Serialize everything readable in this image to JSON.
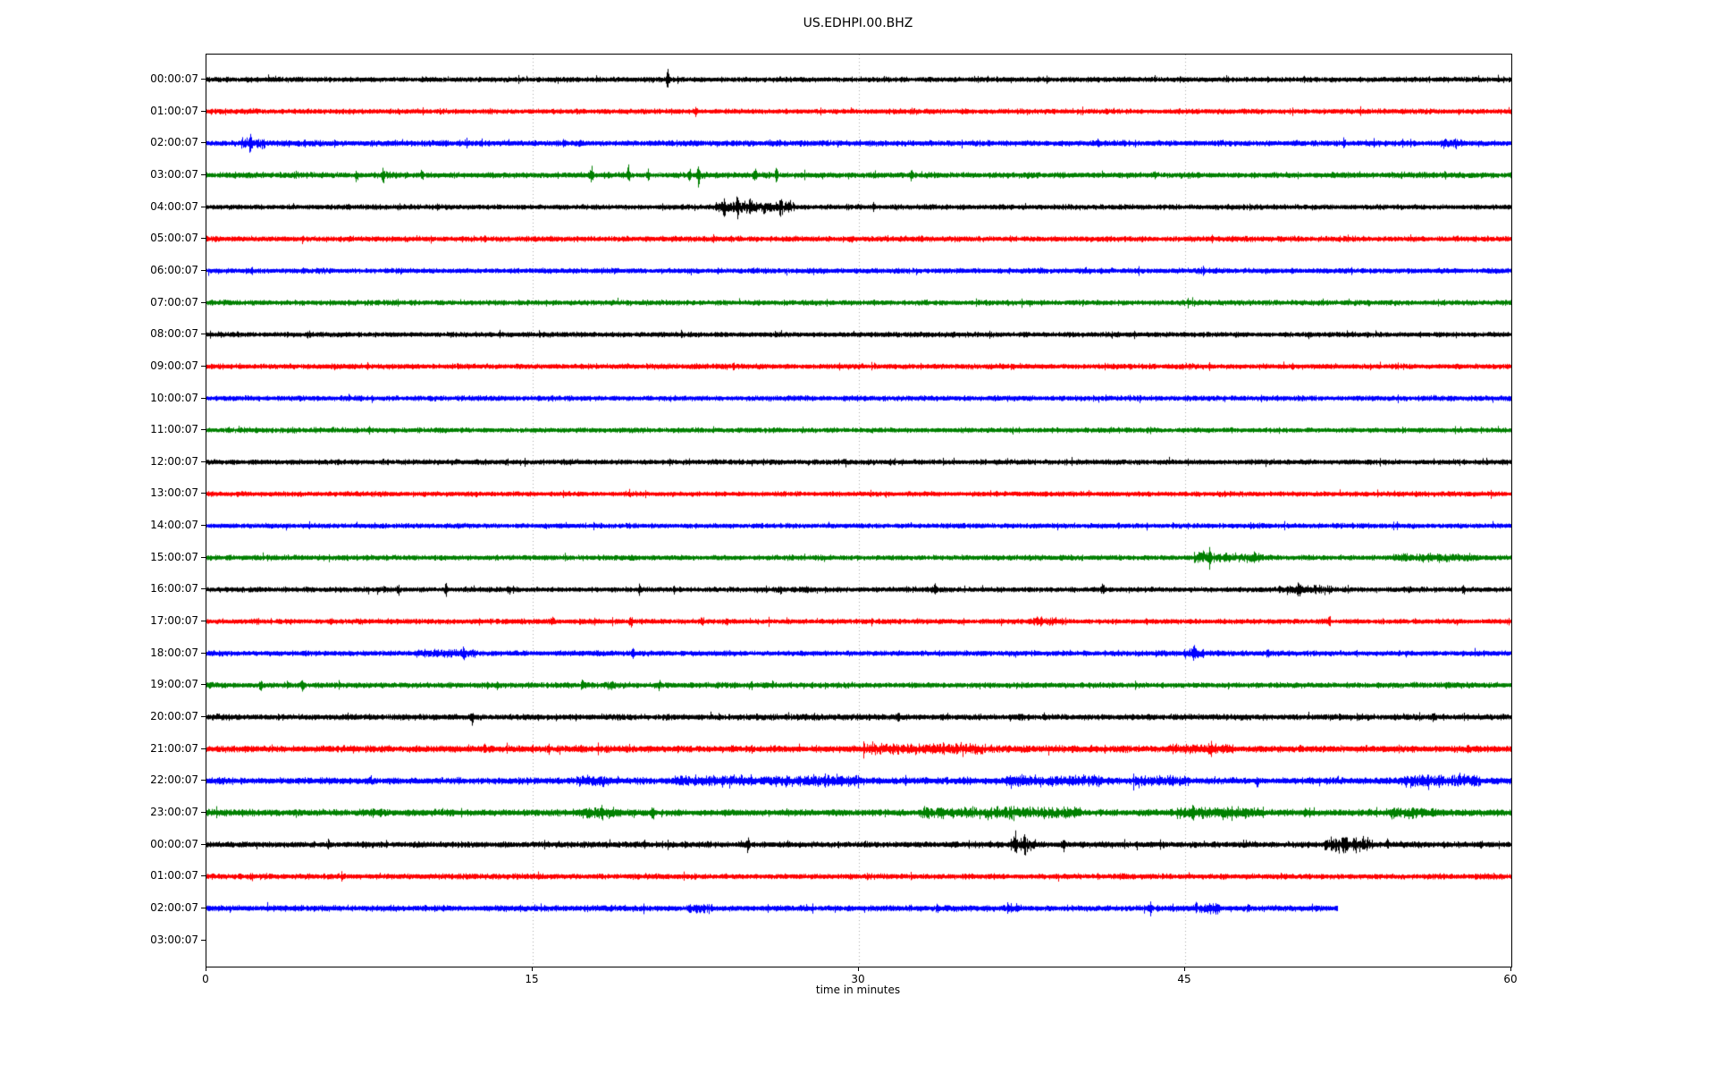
{
  "title": "US.EDHPI.00.BHZ",
  "xlabel": "time in minutes",
  "chart_data": {
    "type": "line",
    "subtype": "helicorder-dayplot",
    "title": "US.EDHPI.00.BHZ",
    "xlabel": "time in minutes",
    "x_range": [
      0,
      60
    ],
    "x_ticks": [
      0,
      15,
      30,
      45,
      60
    ],
    "grid_minutes": [
      15,
      30,
      45
    ],
    "grid_style": "dotted",
    "colors": {
      "black": "#000000",
      "red": "#ff0000",
      "blue": "#0000ff",
      "green": "#008000"
    },
    "rows": [
      {
        "label": "00:00:07",
        "color": "black",
        "base": 3.0,
        "duration": 60,
        "events": [
          {
            "type": "spike",
            "t": 21.2,
            "amp": 16,
            "w": 0.1
          },
          {
            "type": "spike",
            "t": 43.6,
            "amp": 4,
            "w": 0.08
          }
        ]
      },
      {
        "label": "01:00:07",
        "color": "red",
        "base": 3.0,
        "duration": 60,
        "events": [
          {
            "type": "spike",
            "t": 22.5,
            "amp": 5,
            "w": 0.12
          }
        ]
      },
      {
        "label": "02:00:07",
        "color": "blue",
        "base": 3.3,
        "duration": 60,
        "events": [
          {
            "type": "band",
            "t0": 1.6,
            "t1": 2.7,
            "amp": 6
          },
          {
            "type": "spike",
            "t": 2.0,
            "amp": 11,
            "w": 0.1
          },
          {
            "type": "spike",
            "t": 41.0,
            "amp": 4,
            "w": 0.08
          },
          {
            "type": "spike",
            "t": 52.3,
            "amp": 6,
            "w": 0.08
          },
          {
            "type": "band",
            "t0": 56.7,
            "t1": 57.7,
            "amp": 5
          }
        ]
      },
      {
        "label": "03:00:07",
        "color": "green",
        "base": 3.3,
        "duration": 60,
        "events": [
          {
            "type": "spike",
            "t": 6.9,
            "amp": 7,
            "w": 0.1
          },
          {
            "type": "spike",
            "t": 8.1,
            "amp": 13,
            "w": 0.1
          },
          {
            "type": "spike",
            "t": 9.9,
            "amp": 7,
            "w": 0.1
          },
          {
            "type": "spike",
            "t": 17.7,
            "amp": 8,
            "w": 0.12
          },
          {
            "type": "spike",
            "t": 19.4,
            "amp": 10,
            "w": 0.12
          },
          {
            "type": "spike",
            "t": 20.3,
            "amp": 6,
            "w": 0.1
          },
          {
            "type": "spike",
            "t": 22.2,
            "amp": 8,
            "w": 0.1
          },
          {
            "type": "spike",
            "t": 22.6,
            "amp": 12,
            "w": 0.1
          },
          {
            "type": "spike",
            "t": 25.2,
            "amp": 6,
            "w": 0.15
          },
          {
            "type": "spike",
            "t": 26.2,
            "amp": 11,
            "w": 0.1
          },
          {
            "type": "spike",
            "t": 32.4,
            "amp": 8,
            "w": 0.1
          }
        ]
      },
      {
        "label": "04:00:07",
        "color": "black",
        "base": 3.0,
        "duration": 60,
        "events": [
          {
            "type": "band",
            "t0": 23.4,
            "t1": 27.0,
            "amp": 6
          },
          {
            "type": "spike",
            "t": 23.8,
            "amp": 11,
            "w": 0.1
          },
          {
            "type": "spike",
            "t": 24.4,
            "amp": 13,
            "w": 0.1
          },
          {
            "type": "spike",
            "t": 25.0,
            "amp": 11,
            "w": 0.1
          },
          {
            "type": "spike",
            "t": 26.4,
            "amp": 9,
            "w": 0.1
          }
        ]
      },
      {
        "label": "05:00:07",
        "color": "red",
        "base": 3.2,
        "duration": 60,
        "events": [
          {
            "type": "spike",
            "t": 25.3,
            "amp": 3,
            "w": 0.1
          }
        ]
      },
      {
        "label": "06:00:07",
        "color": "blue",
        "base": 3.1,
        "duration": 60,
        "events": []
      },
      {
        "label": "07:00:07",
        "color": "green",
        "base": 3.0,
        "duration": 60,
        "events": []
      },
      {
        "label": "08:00:07",
        "color": "black",
        "base": 3.0,
        "duration": 60,
        "events": []
      },
      {
        "label": "09:00:07",
        "color": "red",
        "base": 3.1,
        "duration": 60,
        "events": []
      },
      {
        "label": "10:00:07",
        "color": "blue",
        "base": 3.0,
        "duration": 60,
        "events": []
      },
      {
        "label": "11:00:07",
        "color": "green",
        "base": 3.0,
        "duration": 60,
        "events": []
      },
      {
        "label": "12:00:07",
        "color": "black",
        "base": 3.0,
        "duration": 60,
        "events": []
      },
      {
        "label": "13:00:07",
        "color": "red",
        "base": 2.9,
        "duration": 60,
        "events": []
      },
      {
        "label": "14:00:07",
        "color": "blue",
        "base": 2.9,
        "duration": 60,
        "events": []
      },
      {
        "label": "15:00:07",
        "color": "green",
        "base": 3.0,
        "duration": 60,
        "events": [
          {
            "type": "band",
            "t0": 45.4,
            "t1": 48.6,
            "amp": 6
          },
          {
            "type": "spike",
            "t": 46.1,
            "amp": 8,
            "w": 0.15
          },
          {
            "type": "band",
            "t0": 54.5,
            "t1": 58.6,
            "amp": 4
          }
        ]
      },
      {
        "label": "16:00:07",
        "color": "black",
        "base": 3.0,
        "duration": 60,
        "events": [
          {
            "type": "spike",
            "t": 8.8,
            "amp": 5,
            "w": 0.1
          },
          {
            "type": "spike",
            "t": 11.0,
            "amp": 8,
            "w": 0.1
          },
          {
            "type": "spike",
            "t": 13.9,
            "amp": 6,
            "w": 0.1
          },
          {
            "type": "spike",
            "t": 19.9,
            "amp": 7,
            "w": 0.1
          },
          {
            "type": "spike",
            "t": 21.5,
            "amp": 5,
            "w": 0.1
          },
          {
            "type": "spike",
            "t": 27.6,
            "amp": 4,
            "w": 0.1
          },
          {
            "type": "spike",
            "t": 33.5,
            "amp": 7,
            "w": 0.1
          },
          {
            "type": "spike",
            "t": 41.2,
            "amp": 6,
            "w": 0.1
          },
          {
            "type": "band",
            "t0": 49.3,
            "t1": 51.7,
            "amp": 4
          },
          {
            "type": "spike",
            "t": 50.2,
            "amp": 8,
            "w": 0.1
          },
          {
            "type": "spike",
            "t": 55.3,
            "amp": 4,
            "w": 0.1
          },
          {
            "type": "spike",
            "t": 57.8,
            "amp": 5,
            "w": 0.1
          }
        ]
      },
      {
        "label": "17:00:07",
        "color": "red",
        "base": 3.0,
        "duration": 60,
        "events": [
          {
            "type": "spike",
            "t": 5.7,
            "amp": 4,
            "w": 0.1
          },
          {
            "type": "spike",
            "t": 15.9,
            "amp": 5,
            "w": 0.1
          },
          {
            "type": "spike",
            "t": 19.5,
            "amp": 6,
            "w": 0.1
          },
          {
            "type": "spike",
            "t": 22.8,
            "amp": 5,
            "w": 0.1
          },
          {
            "type": "spike",
            "t": 23.9,
            "amp": 5,
            "w": 0.1
          },
          {
            "type": "spike",
            "t": 30.6,
            "amp": 4,
            "w": 0.1
          },
          {
            "type": "band",
            "t0": 37.8,
            "t1": 39.6,
            "amp": 4
          },
          {
            "type": "spike",
            "t": 43.2,
            "amp": 4,
            "w": 0.1
          },
          {
            "type": "spike",
            "t": 51.6,
            "amp": 4,
            "w": 0.1
          },
          {
            "type": "spike",
            "t": 55.6,
            "amp": 4,
            "w": 0.1
          }
        ]
      },
      {
        "label": "18:00:07",
        "color": "blue",
        "base": 3.1,
        "duration": 60,
        "events": [
          {
            "type": "band",
            "t0": 9.5,
            "t1": 12.4,
            "amp": 3
          },
          {
            "type": "spike",
            "t": 11.8,
            "amp": 8,
            "w": 0.12
          },
          {
            "type": "spike",
            "t": 19.6,
            "amp": 6,
            "w": 0.1
          },
          {
            "type": "band",
            "t0": 44.9,
            "t1": 45.9,
            "amp": 5
          },
          {
            "type": "spike",
            "t": 45.4,
            "amp": 7,
            "w": 0.1
          },
          {
            "type": "spike",
            "t": 48.8,
            "amp": 4,
            "w": 0.1
          }
        ]
      },
      {
        "label": "19:00:07",
        "color": "green",
        "base": 3.2,
        "duration": 60,
        "events": [
          {
            "type": "spike",
            "t": 2.5,
            "amp": 7,
            "w": 0.12
          },
          {
            "type": "spike",
            "t": 4.4,
            "amp": 6,
            "w": 0.1
          },
          {
            "type": "spike",
            "t": 17.3,
            "amp": 8,
            "w": 0.12
          },
          {
            "type": "spike",
            "t": 18.6,
            "amp": 7,
            "w": 0.1
          },
          {
            "type": "spike",
            "t": 20.8,
            "amp": 6,
            "w": 0.1
          },
          {
            "type": "spike",
            "t": 25.0,
            "amp": 4,
            "w": 0.1
          }
        ]
      },
      {
        "label": "20:00:07",
        "color": "black",
        "base": 3.4,
        "duration": 60,
        "events": [
          {
            "type": "spike",
            "t": 12.2,
            "amp": 8,
            "w": 0.1
          },
          {
            "type": "spike",
            "t": 31.8,
            "amp": 4,
            "w": 0.1
          },
          {
            "type": "spike",
            "t": 38.5,
            "amp": 4,
            "w": 0.1
          },
          {
            "type": "spike",
            "t": 56.4,
            "amp": 6,
            "w": 0.1
          }
        ]
      },
      {
        "label": "21:00:07",
        "color": "red",
        "base": 3.8,
        "duration": 60,
        "events": [
          {
            "type": "spike",
            "t": 12.8,
            "amp": 5,
            "w": 0.1
          },
          {
            "type": "band",
            "t0": 30.2,
            "t1": 35.8,
            "amp": 5
          },
          {
            "type": "band",
            "t0": 44.2,
            "t1": 47.2,
            "amp": 4
          },
          {
            "type": "spike",
            "t": 50.3,
            "amp": 4,
            "w": 0.1
          },
          {
            "type": "spike",
            "t": 58.0,
            "amp": 4,
            "w": 0.1
          }
        ]
      },
      {
        "label": "22:00:07",
        "color": "blue",
        "base": 3.8,
        "duration": 60,
        "events": [
          {
            "type": "band",
            "t0": 17.0,
            "t1": 18.6,
            "amp": 5
          },
          {
            "type": "band",
            "t0": 21.4,
            "t1": 25.1,
            "amp": 5.5
          },
          {
            "type": "band",
            "t0": 25.6,
            "t1": 30.0,
            "amp": 5
          },
          {
            "type": "spike",
            "t": 36.8,
            "amp": 8,
            "w": 0.1
          },
          {
            "type": "band",
            "t0": 36.9,
            "t1": 41.2,
            "amp": 5
          },
          {
            "type": "band",
            "t0": 42.6,
            "t1": 45.1,
            "amp": 4.5
          },
          {
            "type": "spike",
            "t": 48.3,
            "amp": 5,
            "w": 0.1
          },
          {
            "type": "band",
            "t0": 54.8,
            "t1": 58.6,
            "amp": 5
          }
        ]
      },
      {
        "label": "23:00:07",
        "color": "green",
        "base": 3.8,
        "duration": 60,
        "events": [
          {
            "type": "spike",
            "t": 8.0,
            "amp": 4,
            "w": 0.1
          },
          {
            "type": "band",
            "t0": 17.2,
            "t1": 19.2,
            "amp": 5
          },
          {
            "type": "spike",
            "t": 20.5,
            "amp": 8,
            "w": 0.12
          },
          {
            "type": "band",
            "t0": 32.8,
            "t1": 40.2,
            "amp": 5.5
          },
          {
            "type": "band",
            "t0": 44.6,
            "t1": 48.6,
            "amp": 5.5
          },
          {
            "type": "band",
            "t0": 54.4,
            "t1": 56.6,
            "amp": 4.5
          }
        ]
      },
      {
        "label": "00:00:07",
        "color": "black",
        "base": 3.4,
        "duration": 60,
        "events": [
          {
            "type": "spike",
            "t": 5.6,
            "amp": 6,
            "w": 0.1
          },
          {
            "type": "spike",
            "t": 20.1,
            "amp": 5,
            "w": 0.1
          },
          {
            "type": "spike",
            "t": 24.9,
            "amp": 7,
            "w": 0.1
          },
          {
            "type": "band",
            "t0": 36.9,
            "t1": 38.1,
            "amp": 8
          },
          {
            "type": "spike",
            "t": 37.2,
            "amp": 14,
            "w": 0.1
          },
          {
            "type": "spike",
            "t": 37.6,
            "amp": 12,
            "w": 0.1
          },
          {
            "type": "spike",
            "t": 39.4,
            "amp": 8,
            "w": 0.1
          },
          {
            "type": "band",
            "t0": 51.4,
            "t1": 53.6,
            "amp": 8
          },
          {
            "type": "spike",
            "t": 54.3,
            "amp": 7,
            "w": 0.1
          },
          {
            "type": "spike",
            "t": 58.6,
            "amp": 4,
            "w": 0.1
          }
        ]
      },
      {
        "label": "01:00:07",
        "color": "red",
        "base": 3.2,
        "duration": 60,
        "events": []
      },
      {
        "label": "02:00:07",
        "color": "blue",
        "base": 3.4,
        "duration": 52,
        "events": [
          {
            "type": "band",
            "t0": 22.1,
            "t1": 23.3,
            "amp": 4
          },
          {
            "type": "spike",
            "t": 33.6,
            "amp": 4,
            "w": 0.1
          },
          {
            "type": "band",
            "t0": 36.7,
            "t1": 37.5,
            "amp": 4
          },
          {
            "type": "spike",
            "t": 43.4,
            "amp": 8,
            "w": 0.1
          },
          {
            "type": "band",
            "t0": 45.3,
            "t1": 46.6,
            "amp": 5
          },
          {
            "type": "spike",
            "t": 47.9,
            "amp": 5,
            "w": 0.1
          }
        ]
      },
      {
        "label": "03:00:07",
        "color": "black",
        "base": 0,
        "duration": 0,
        "events": []
      }
    ]
  }
}
